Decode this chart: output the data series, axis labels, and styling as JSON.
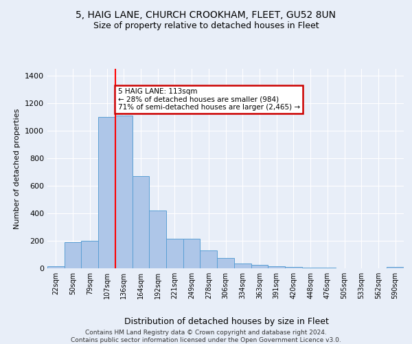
{
  "title1": "5, HAIG LANE, CHURCH CROOKHAM, FLEET, GU52 8UN",
  "title2": "Size of property relative to detached houses in Fleet",
  "xlabel": "Distribution of detached houses by size in Fleet",
  "ylabel": "Number of detached properties",
  "categories": [
    "22sqm",
    "50sqm",
    "79sqm",
    "107sqm",
    "136sqm",
    "164sqm",
    "192sqm",
    "221sqm",
    "249sqm",
    "278sqm",
    "306sqm",
    "334sqm",
    "363sqm",
    "391sqm",
    "420sqm",
    "448sqm",
    "476sqm",
    "505sqm",
    "533sqm",
    "562sqm",
    "590sqm"
  ],
  "values": [
    15,
    190,
    200,
    1100,
    1110,
    670,
    420,
    215,
    215,
    130,
    75,
    35,
    25,
    15,
    10,
    5,
    3,
    2,
    0,
    0,
    10
  ],
  "bar_color": "#aec6e8",
  "bar_edge_color": "#5a9fd4",
  "red_line_x": 3.5,
  "annotation_text": "5 HAIG LANE: 113sqm\n← 28% of detached houses are smaller (984)\n71% of semi-detached houses are larger (2,465) →",
  "annotation_box_color": "#ffffff",
  "annotation_box_edge_color": "#cc0000",
  "ylim": [
    0,
    1450
  ],
  "yticks": [
    0,
    200,
    400,
    600,
    800,
    1000,
    1200,
    1400
  ],
  "footer_text": "Contains HM Land Registry data © Crown copyright and database right 2024.\nContains public sector information licensed under the Open Government Licence v3.0.",
  "bg_color": "#e8eef8",
  "plot_bg_color": "#e8eef8",
  "grid_color": "#ffffff",
  "title1_fontsize": 10,
  "title2_fontsize": 9
}
